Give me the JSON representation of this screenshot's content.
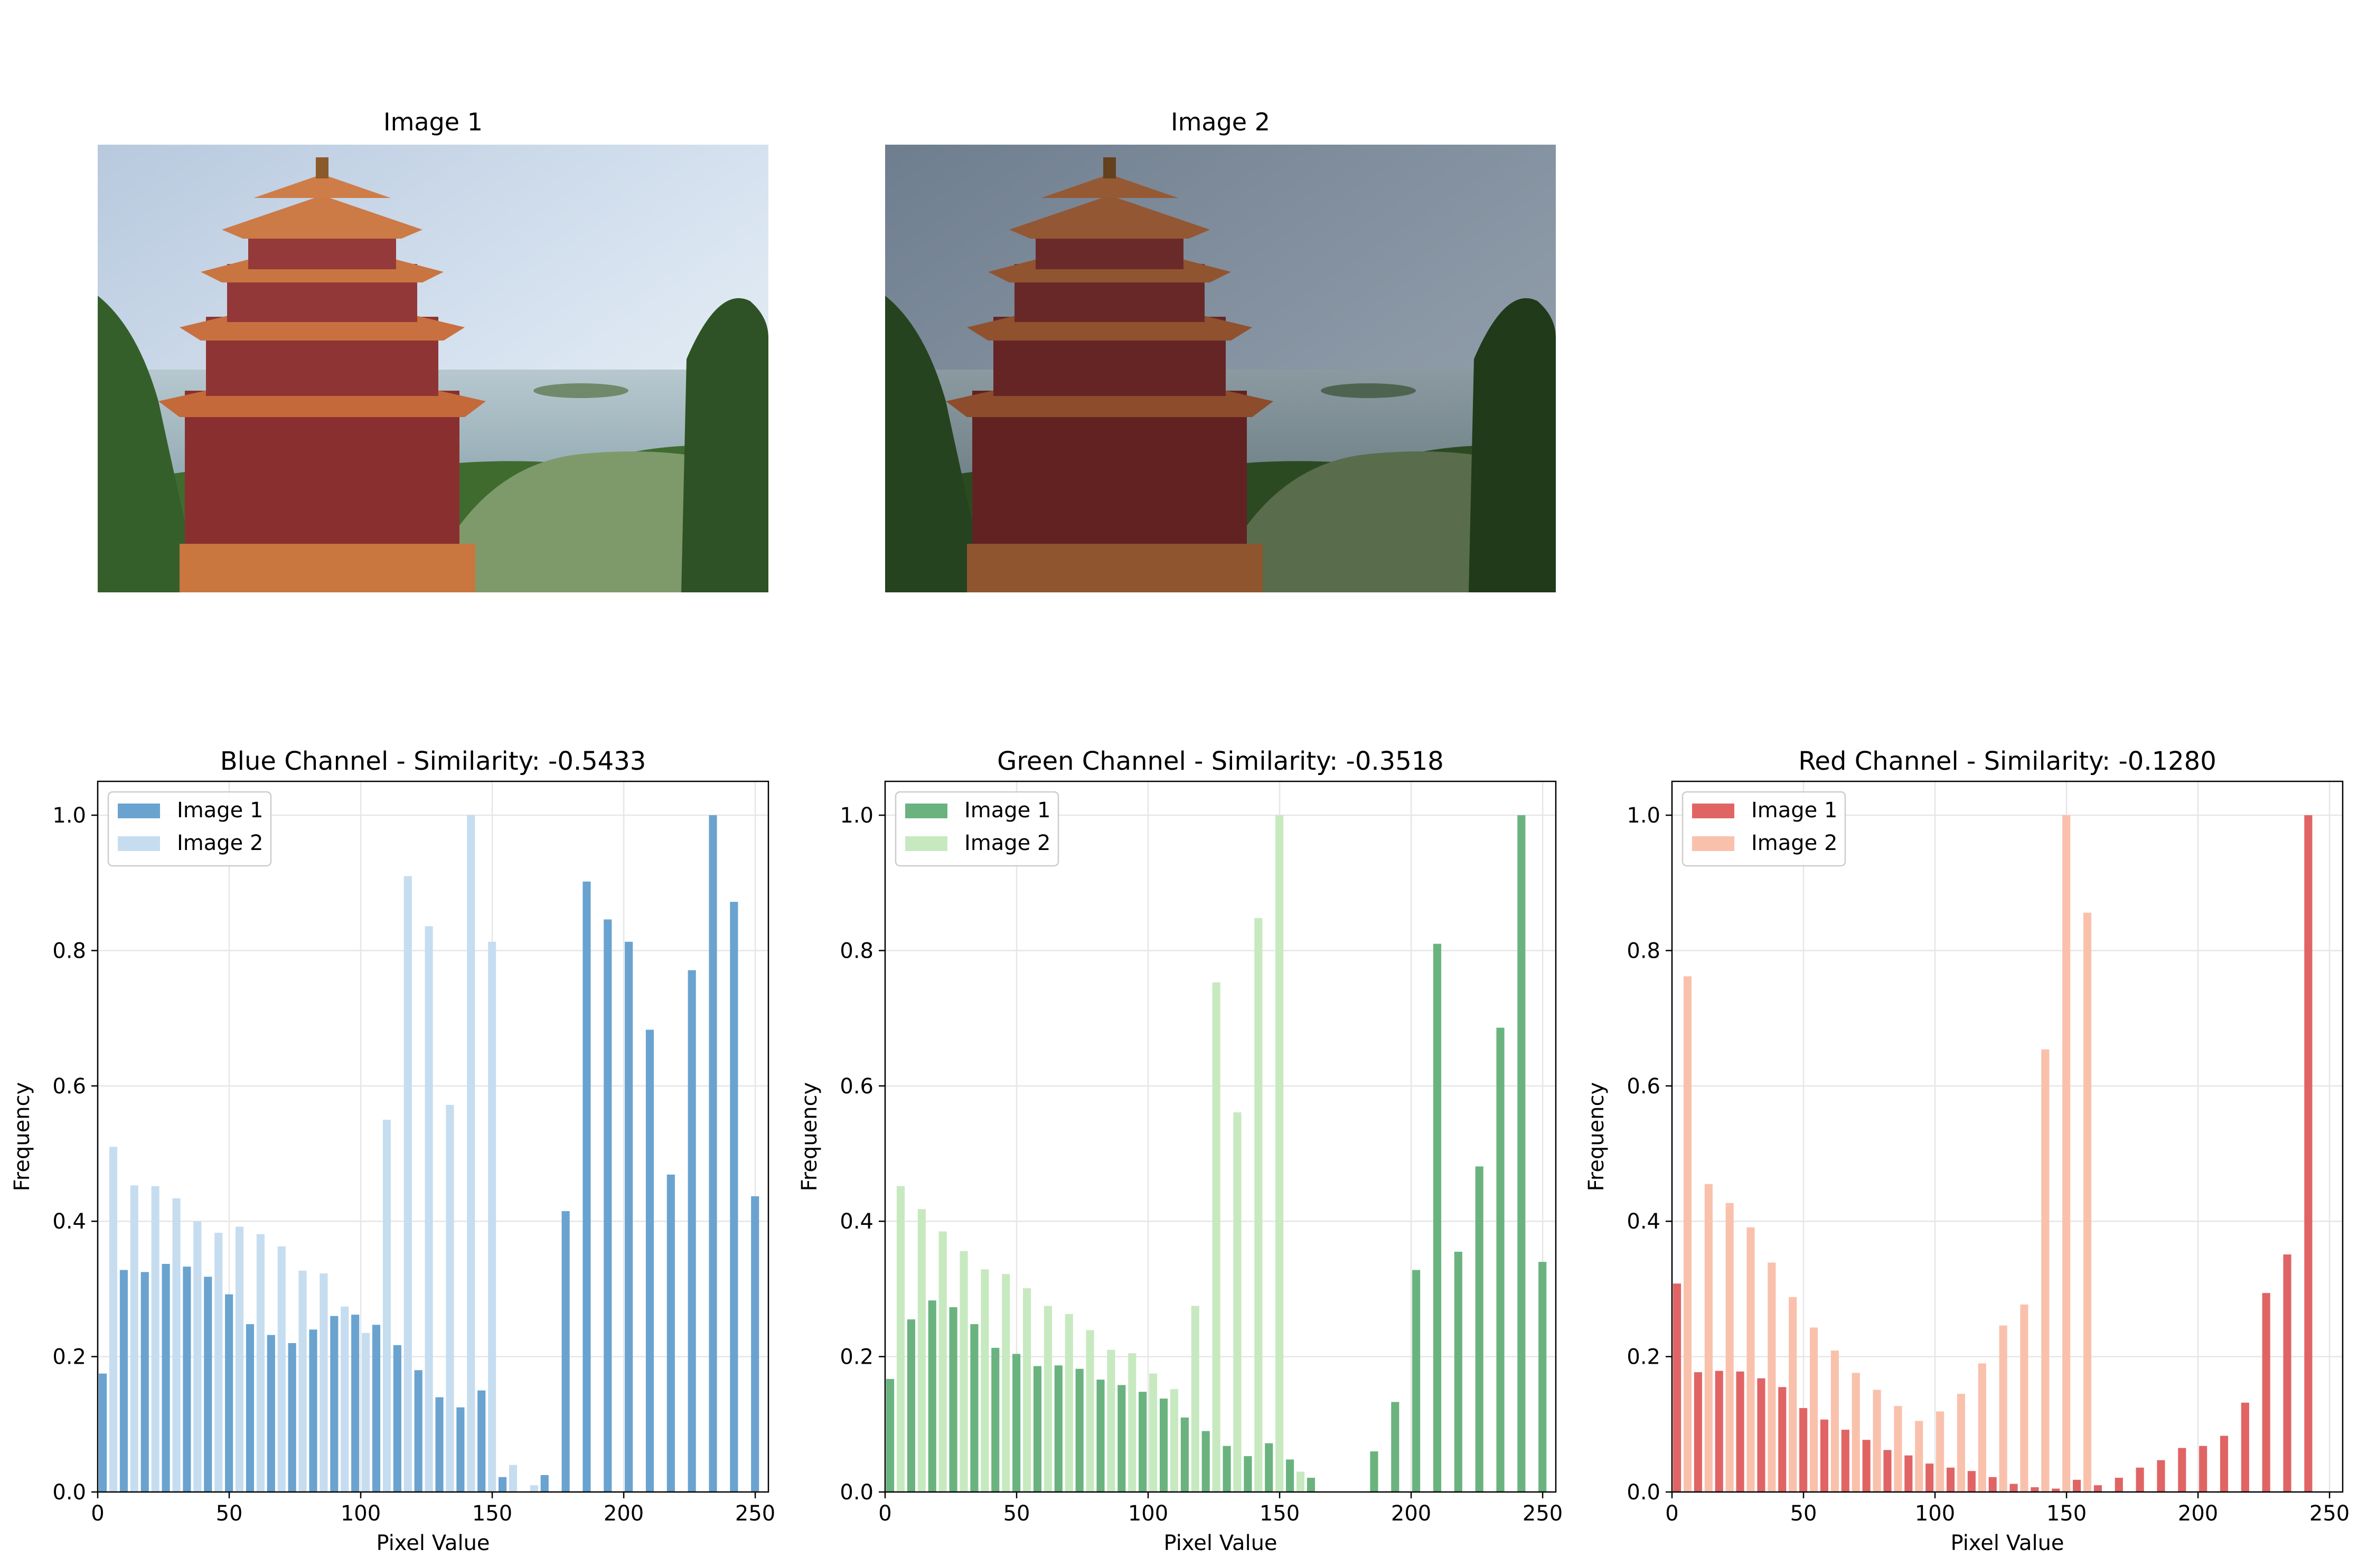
{
  "images": [
    {
      "title": "Image 1"
    },
    {
      "title": "Image 2"
    }
  ],
  "colors": {
    "blue_img1": "#6aa3cf",
    "blue_img2": "#c6ddf0",
    "green_img1": "#6ab37f",
    "green_img2": "#c7e9c0",
    "red_img1": "#e16465",
    "red_img2": "#f9c1ac"
  },
  "chart_data": [
    {
      "type": "bar",
      "title": "Blue Channel - Similarity: -0.5433",
      "xlabel": "Pixel Value",
      "ylabel": "Frequency",
      "xlim": [
        0,
        255
      ],
      "ylim": [
        0,
        1.05
      ],
      "xticks": [
        "0",
        "50",
        "100",
        "150",
        "200",
        "250"
      ],
      "yticks": [
        "0.0",
        "0.2",
        "0.4",
        "0.6",
        "0.8",
        "1.0"
      ],
      "grid": true,
      "legend": "upper-left",
      "bin_width": 8,
      "x": [
        4,
        12,
        20,
        28,
        36,
        44,
        52,
        60,
        68,
        76,
        84,
        92,
        100,
        108,
        116,
        124,
        132,
        140,
        148,
        156,
        164,
        172,
        180,
        188,
        196,
        204,
        212,
        220,
        228,
        236,
        244,
        252
      ],
      "series": [
        {
          "name": "Image 1",
          "color": "#6aa3cf",
          "values": [
            0.175,
            0.328,
            0.325,
            0.337,
            0.333,
            0.318,
            0.292,
            0.248,
            0.232,
            0.22,
            0.24,
            0.26,
            0.262,
            0.247,
            0.217,
            0.18,
            0.14,
            0.125,
            0.15,
            0.022,
            0.0,
            0.025,
            0.415,
            0.902,
            0.846,
            0.813,
            0.683,
            0.469,
            0.771,
            1.0,
            0.872,
            0.437
          ]
        },
        {
          "name": "Image 2",
          "color": "#c6ddf0",
          "values": [
            0.51,
            0.453,
            0.452,
            0.434,
            0.4,
            0.383,
            0.392,
            0.381,
            0.363,
            0.327,
            0.323,
            0.274,
            0.235,
            0.55,
            0.91,
            0.836,
            0.572,
            1.0,
            0.813,
            0.04,
            0.01,
            0.0,
            0.0,
            0.0,
            0.0,
            0.0,
            0.0,
            0.0,
            0.0,
            0.0,
            0.0,
            0.0
          ]
        }
      ]
    },
    {
      "type": "bar",
      "title": "Green Channel - Similarity: -0.3518",
      "xlabel": "Pixel Value",
      "ylabel": "Frequency",
      "xlim": [
        0,
        255
      ],
      "ylim": [
        0,
        1.05
      ],
      "xticks": [
        "0",
        "50",
        "100",
        "150",
        "200",
        "250"
      ],
      "yticks": [
        "0.0",
        "0.2",
        "0.4",
        "0.6",
        "0.8",
        "1.0"
      ],
      "grid": true,
      "legend": "upper-left",
      "bin_width": 8,
      "x": [
        4,
        12,
        20,
        28,
        36,
        44,
        52,
        60,
        68,
        76,
        84,
        92,
        100,
        108,
        116,
        124,
        132,
        140,
        148,
        156,
        164,
        172,
        180,
        188,
        196,
        204,
        212,
        220,
        228,
        236,
        244,
        252
      ],
      "series": [
        {
          "name": "Image 1",
          "color": "#6ab37f",
          "values": [
            0.167,
            0.255,
            0.283,
            0.273,
            0.248,
            0.213,
            0.204,
            0.186,
            0.187,
            0.182,
            0.166,
            0.158,
            0.148,
            0.138,
            0.11,
            0.09,
            0.068,
            0.053,
            0.072,
            0.048,
            0.021,
            0.0,
            0.0,
            0.06,
            0.133,
            0.328,
            0.81,
            0.355,
            0.481,
            0.686,
            1.0,
            0.34
          ]
        },
        {
          "name": "Image 2",
          "color": "#c7e9c0",
          "values": [
            0.452,
            0.418,
            0.385,
            0.356,
            0.329,
            0.322,
            0.301,
            0.275,
            0.263,
            0.239,
            0.21,
            0.205,
            0.175,
            0.152,
            0.275,
            0.753,
            0.561,
            0.848,
            1.0,
            0.03,
            0.0,
            0.0,
            0.0,
            0.0,
            0.0,
            0.0,
            0.0,
            0.0,
            0.0,
            0.0,
            0.0,
            0.0
          ]
        }
      ]
    },
    {
      "type": "bar",
      "title": "Red Channel - Similarity: -0.1280",
      "xlabel": "Pixel Value",
      "ylabel": "Frequency",
      "xlim": [
        0,
        255
      ],
      "ylim": [
        0,
        1.05
      ],
      "xticks": [
        "0",
        "50",
        "100",
        "150",
        "200",
        "250"
      ],
      "yticks": [
        "0.0",
        "0.2",
        "0.4",
        "0.6",
        "0.8",
        "1.0"
      ],
      "grid": true,
      "legend": "upper-left",
      "bin_width": 8,
      "x": [
        4,
        12,
        20,
        28,
        36,
        44,
        52,
        60,
        68,
        76,
        84,
        92,
        100,
        108,
        116,
        124,
        132,
        140,
        148,
        156,
        164,
        172,
        180,
        188,
        196,
        204,
        212,
        220,
        228,
        236,
        244,
        252
      ],
      "series": [
        {
          "name": "Image 1",
          "color": "#e16465",
          "values": [
            0.308,
            0.177,
            0.179,
            0.178,
            0.168,
            0.155,
            0.124,
            0.107,
            0.092,
            0.077,
            0.062,
            0.054,
            0.042,
            0.036,
            0.031,
            0.022,
            0.012,
            0.007,
            0.005,
            0.018,
            0.01,
            0.021,
            0.036,
            0.047,
            0.065,
            0.068,
            0.083,
            0.132,
            0.294,
            0.351,
            1.0,
            0.0
          ]
        },
        {
          "name": "Image 2",
          "color": "#f9c1ac",
          "values": [
            0.762,
            0.455,
            0.427,
            0.391,
            0.339,
            0.288,
            0.243,
            0.209,
            0.176,
            0.151,
            0.127,
            0.105,
            0.119,
            0.145,
            0.19,
            0.246,
            0.277,
            0.654,
            1.0,
            0.856,
            0.0,
            0.0,
            0.0,
            0.0,
            0.0,
            0.0,
            0.0,
            0.0,
            0.0,
            0.0,
            0.0,
            0.0
          ]
        }
      ]
    }
  ]
}
